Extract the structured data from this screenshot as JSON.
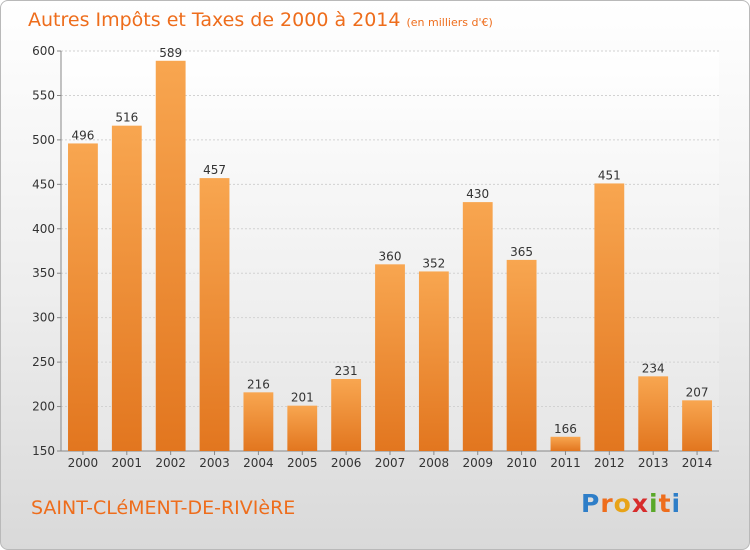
{
  "chart_data": {
    "type": "bar",
    "title": "Autres Impôts et Taxes de 2000 à 2014",
    "subtitle": "(en milliers d'€)",
    "categories": [
      "2000",
      "2001",
      "2002",
      "2003",
      "2004",
      "2005",
      "2006",
      "2007",
      "2008",
      "2009",
      "2010",
      "2011",
      "2012",
      "2013",
      "2014"
    ],
    "values": [
      496,
      516,
      589,
      457,
      216,
      201,
      231,
      360,
      352,
      430,
      365,
      166,
      451,
      234,
      207
    ],
    "ylim": [
      150,
      600
    ],
    "yticks": [
      150,
      200,
      250,
      300,
      350,
      400,
      450,
      500,
      550,
      600
    ],
    "grid": true,
    "bar_color": "#f39a3d"
  },
  "footer": {
    "town": "SAINT-CLéMENT-DE-RIVIèRE",
    "logo_text": "Proxiti"
  },
  "colors": {
    "accent": "#ee6d1c",
    "logo_letters": [
      "#2e7ec8",
      "#ee6d1c",
      "#e8a317",
      "#d72c2c",
      "#5aa829",
      "#ee6d1c",
      "#2e7ec8"
    ]
  }
}
